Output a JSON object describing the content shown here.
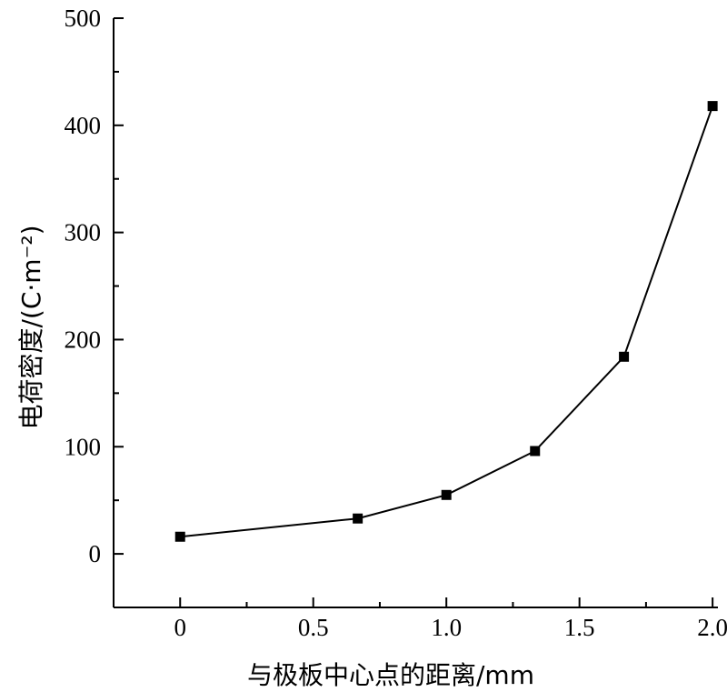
{
  "chart_data": {
    "type": "line",
    "title": "",
    "xlabel": "与极板中心点的距离/mm",
    "ylabel": "电荷密度/(C·m⁻²)",
    "xlim": [
      -0.25,
      2.02
    ],
    "ylim": [
      -50,
      500
    ],
    "xticks": [
      0,
      0.5,
      1.0,
      1.5,
      2.0
    ],
    "xtick_labels": [
      "0",
      "0.5",
      "1.0",
      "1.5",
      "2.0"
    ],
    "yticks": [
      0,
      100,
      200,
      300,
      400,
      500
    ],
    "ytick_labels": [
      "0",
      "100",
      "200",
      "300",
      "400",
      "500"
    ],
    "grid": false,
    "series": [
      {
        "marker": "square",
        "color": "#000000",
        "x": [
          0,
          0.667,
          1.0,
          1.333,
          1.667,
          2.0
        ],
        "y": [
          16,
          33,
          55,
          96,
          184,
          418
        ]
      }
    ]
  }
}
